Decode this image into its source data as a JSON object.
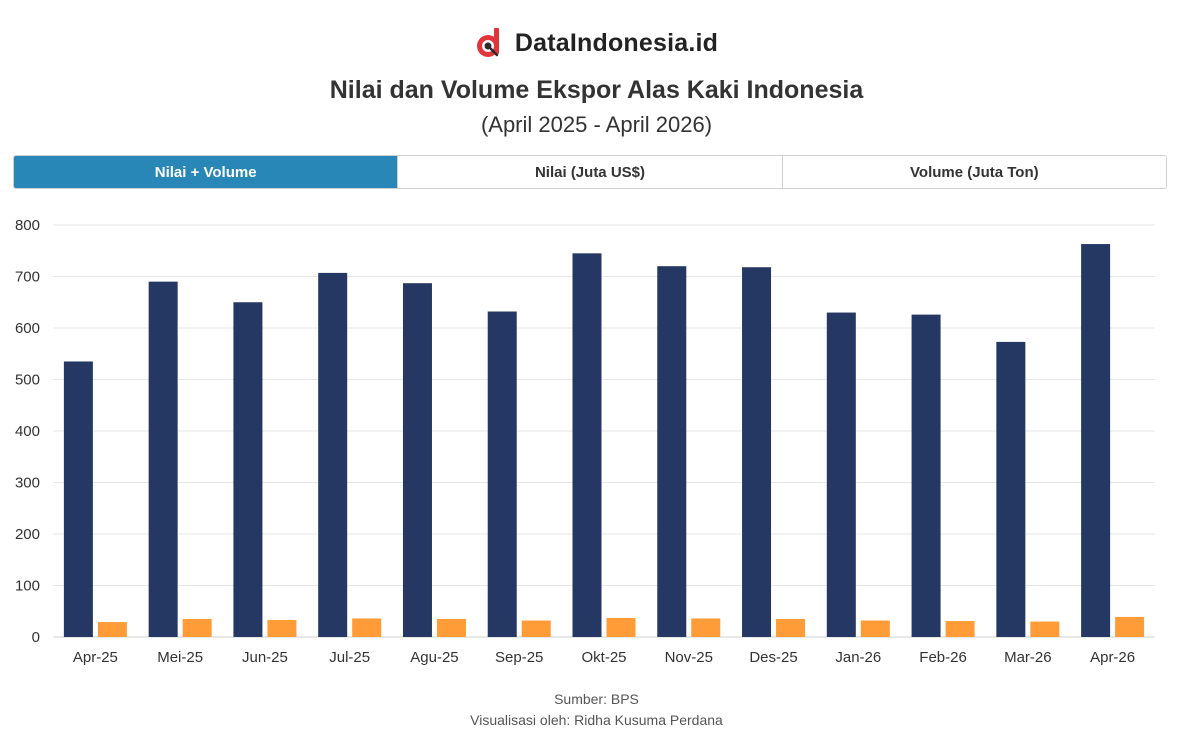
{
  "brand": {
    "name": "DataIndonesia.id",
    "logo_icon": "dataindonesia-logo-icon"
  },
  "header": {
    "title": "Nilai dan Volume Ekspor Alas Kaki Indonesia",
    "subtitle": "(April 2025 - April 2026)"
  },
  "tabs": [
    {
      "label": "Nilai + Volume",
      "active": true
    },
    {
      "label": "Nilai (Juta US$)",
      "active": false
    },
    {
      "label": "Volume (Juta Ton)",
      "active": false
    }
  ],
  "chart_data": {
    "type": "bar",
    "categories": [
      "Apr-25",
      "Mei-25",
      "Jun-25",
      "Jul-25",
      "Agu-25",
      "Sep-25",
      "Okt-25",
      "Nov-25",
      "Des-25",
      "Jan-26",
      "Feb-26",
      "Mar-26",
      "Apr-26"
    ],
    "series": [
      {
        "values": [
          535,
          690,
          650,
          707,
          687,
          632,
          745,
          720,
          718,
          630,
          626,
          573,
          763
        ],
        "color": "#253763"
      },
      {
        "values": [
          29,
          35,
          33,
          36,
          35,
          32,
          37,
          36,
          35,
          32,
          31,
          30,
          39
        ],
        "color": "#ff9c38"
      }
    ],
    "ylim": [
      0,
      800
    ],
    "yticks": [
      0,
      100,
      200,
      300,
      400,
      500,
      600,
      700,
      800
    ],
    "grid": true,
    "legend": "none"
  },
  "footer": {
    "source": "Sumber: BPS",
    "credit": "Visualisasi oleh: Ridha Kusuma Perdana"
  }
}
